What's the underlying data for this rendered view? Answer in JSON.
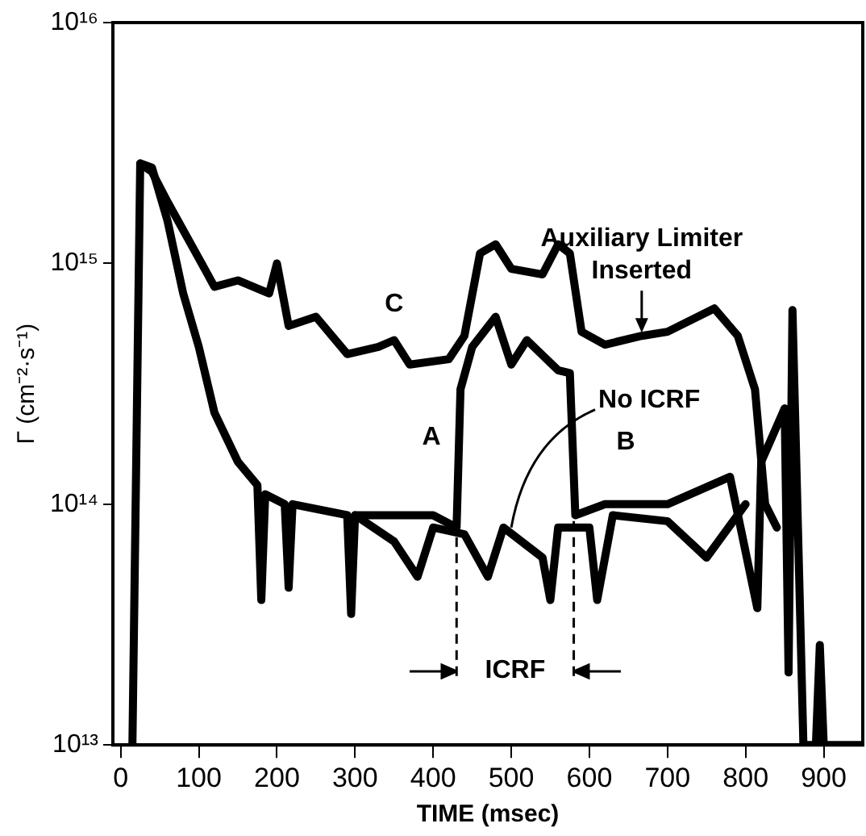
{
  "chart_data": {
    "type": "line",
    "xlabel": "TIME (msec)",
    "ylabel": "Γ (cm⁻²·s⁻¹)",
    "log": "y",
    "grid": false,
    "legend": false,
    "marker": "none",
    "line_style": "solid",
    "xlim": [
      -10,
      950
    ],
    "xticks": [
      0,
      100,
      200,
      300,
      400,
      500,
      600,
      700,
      800,
      900
    ],
    "ylim": [
      10000000000000.0,
      1e+16
    ],
    "yticks": [
      {
        "value": 10000000000000.0,
        "label": "10¹³"
      },
      {
        "value": 100000000000000.0,
        "label": "10¹⁴"
      },
      {
        "value": 1000000000000000.0,
        "label": "10¹⁵"
      },
      {
        "value": 1e+16,
        "label": "10¹⁶"
      }
    ],
    "series": [
      {
        "name": "A",
        "color": "#000000",
        "x": [
          15,
          25,
          40,
          60,
          80,
          100,
          120,
          150,
          175,
          180,
          185,
          210,
          215,
          220,
          290,
          295,
          300,
          400,
          430,
          435,
          450,
          480,
          500,
          520,
          560,
          575,
          582,
          620,
          700,
          780,
          815,
          820,
          850,
          855,
          860,
          874,
          880,
          890,
          895,
          900,
          950
        ],
        "values": [
          10000000000000.0,
          2600000000000000.0,
          2500000000000000.0,
          1500000000000000.0,
          750000000000000.0,
          450000000000000.0,
          240000000000000.0,
          150000000000000.0,
          120000000000000.0,
          40000000000000.0,
          110000000000000.0,
          100000000000000.0,
          45000000000000.0,
          100000000000000.0,
          90000000000000.0,
          35000000000000.0,
          90000000000000.0,
          90000000000000.0,
          80000000000000.0,
          300000000000000.0,
          450000000000000.0,
          600000000000000.0,
          380000000000000.0,
          480000000000000.0,
          360000000000000.0,
          350000000000000.0,
          90000000000000.0,
          100000000000000.0,
          100000000000000.0,
          130000000000000.0,
          37000000000000.0,
          150000000000000.0,
          250000000000000.0,
          20000000000000.0,
          640000000000000.0,
          10000000000000.0,
          10000000000000.0,
          10000000000000.0,
          26000000000000.0,
          10000000000000.0,
          10000000000000.0
        ]
      },
      {
        "name": "B",
        "color": "#000000",
        "x": [
          300,
          350,
          380,
          400,
          440,
          470,
          490,
          540,
          550,
          560,
          600,
          610,
          630,
          700,
          750,
          800
        ],
        "values": [
          90000000000000.0,
          70000000000000.0,
          50000000000000.0,
          80000000000000.0,
          75000000000000.0,
          50000000000000.0,
          80000000000000.0,
          60000000000000.0,
          40000000000000.0,
          80000000000000.0,
          80000000000000.0,
          40000000000000.0,
          90000000000000.0,
          85000000000000.0,
          60000000000000.0,
          100000000000000.0
        ]
      },
      {
        "name": "C",
        "color": "#000000",
        "x": [
          25,
          40,
          60,
          100,
          120,
          150,
          190,
          200,
          215,
          250,
          290,
          330,
          350,
          370,
          420,
          440,
          460,
          480,
          500,
          540,
          560,
          575,
          590,
          620,
          667,
          700,
          760,
          790,
          812,
          825,
          840
        ],
        "values": [
          2600000000000000.0,
          2400000000000000.0,
          1800000000000000.0,
          1050000000000000.0,
          800000000000000.0,
          850000000000000.0,
          750000000000000.0,
          1000000000000000.0,
          550000000000000.0,
          600000000000000.0,
          420000000000000.0,
          450000000000000.0,
          480000000000000.0,
          380000000000000.0,
          400000000000000.0,
          500000000000000.0,
          1100000000000000.0,
          1200000000000000.0,
          950000000000000.0,
          900000000000000.0,
          1200000000000000.0,
          1100000000000000.0,
          520000000000000.0,
          460000000000000.0,
          500000000000000.0,
          520000000000000.0,
          650000000000000.0,
          500000000000000.0,
          300000000000000.0,
          100000000000000.0,
          80000000000000.0
        ]
      }
    ],
    "ref_lines": [
      {
        "axis": "x",
        "value": 430,
        "line_style": "dashed"
      },
      {
        "axis": "x",
        "value": 580,
        "line_style": "dashed"
      }
    ],
    "annotations": [
      "ICRF",
      {
        "text": "No ICRF",
        "x": 500,
        "y": 80000000000000.0
      },
      {
        "text": "Auxiliary Limiter Inserted",
        "x": 667,
        "y": 500000000000000.0
      }
    ]
  }
}
